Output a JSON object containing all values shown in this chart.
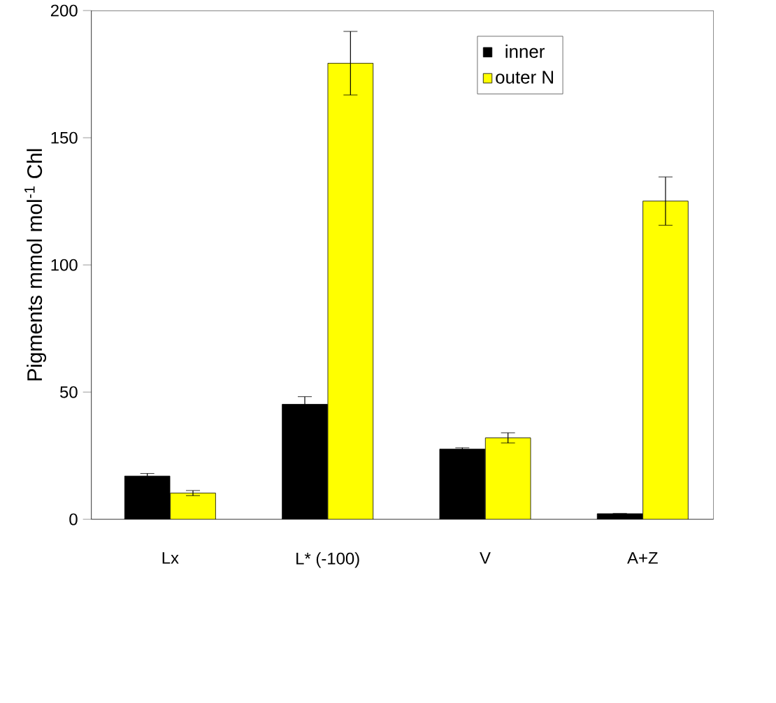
{
  "chart_data": {
    "type": "bar",
    "ylabel": "Pigments mmol mol$^{-1}$ Chl",
    "categories": [
      "Lx",
      "L* (-100)",
      "V",
      "A+Z"
    ],
    "series": [
      {
        "name": "inner",
        "color": "#000000",
        "values": [
          17,
          45.2,
          27.6,
          2.2
        ],
        "errors": [
          1,
          3,
          0.5,
          null
        ]
      },
      {
        "name": "outer N",
        "color": "#ffff00",
        "values": [
          10.3,
          179.3,
          32,
          125.1
        ],
        "errors": [
          1,
          12.5,
          2,
          9.5
        ]
      }
    ],
    "ylim": [
      0,
      200
    ],
    "yticks": [
      0,
      50,
      100,
      150,
      200
    ],
    "legend": "top right",
    "grid": false
  }
}
